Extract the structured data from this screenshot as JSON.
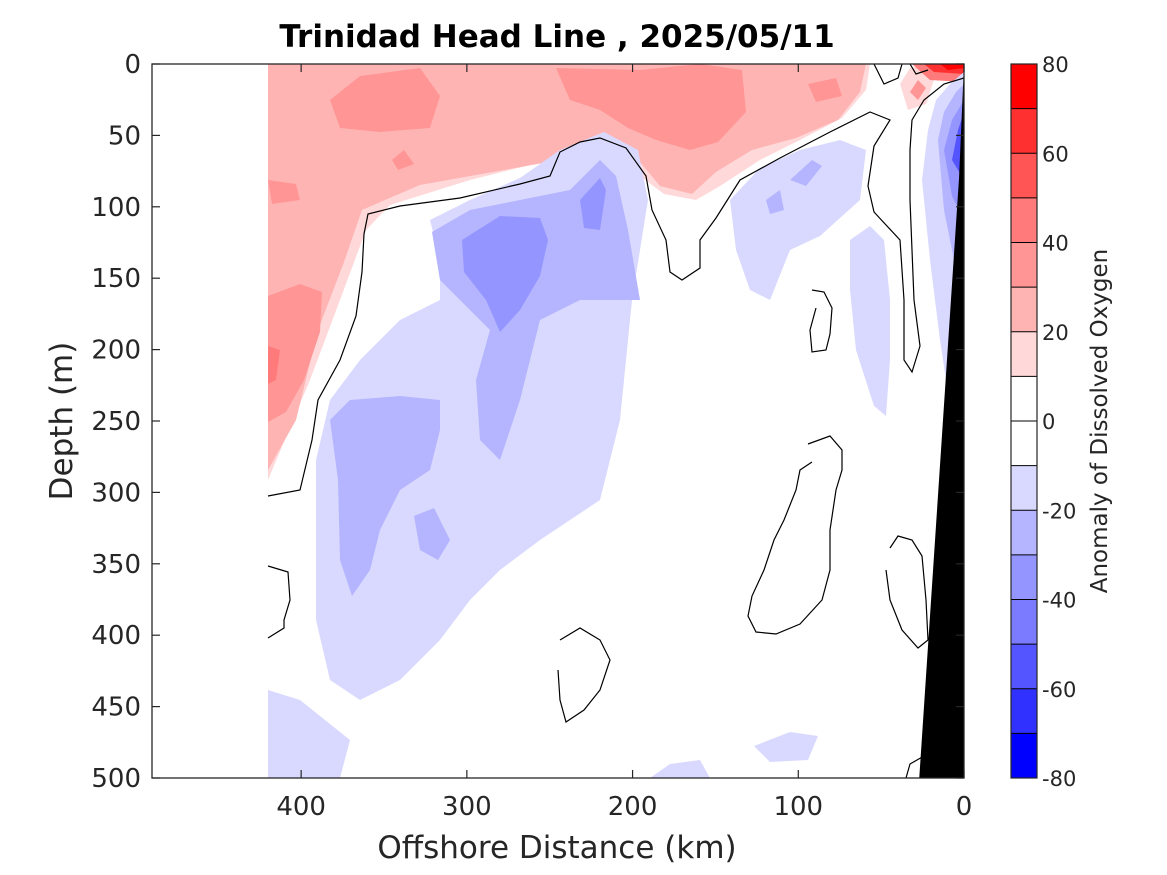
{
  "chart_data": {
    "type": "heatmap",
    "subtype": "filled-contour section",
    "title": "Trinidad Head Line , 2025/05/11",
    "xlabel": "Offshore Distance (km)",
    "ylabel": "Depth (m)",
    "xlim": [
      490,
      0
    ],
    "x_reversed": true,
    "ylim": [
      500,
      0
    ],
    "y_reversed": true,
    "xticks": [
      400,
      300,
      200,
      100,
      0
    ],
    "yticks": [
      0,
      50,
      100,
      150,
      200,
      250,
      300,
      350,
      400,
      450,
      500
    ],
    "grid": false,
    "colorbar": {
      "label": "Anomaly of Dissolved Oxygen",
      "range": [
        -80,
        80
      ],
      "level_step": 10,
      "ticks": [
        80,
        60,
        40,
        20,
        0,
        -20,
        -40,
        -60,
        -80
      ],
      "colors": {
        "pos_70_80": "#ff0000",
        "pos_60_70": "#ff3030",
        "pos_50_60": "#ff5555",
        "pos_40_50": "#ff7b7b",
        "pos_30_40": "#ff9595",
        "pos_20_30": "#ffb4b4",
        "pos_10_20": "#ffd9d9",
        "zero_band": "#ffffff",
        "neg_10_20": "#d9d9ff",
        "neg_20_30": "#b4b4ff",
        "neg_30_40": "#9595ff",
        "neg_40_50": "#7b7bff",
        "neg_50_60": "#5555ff",
        "neg_60_70": "#3030ff",
        "neg_70_80": "#0000ff"
      }
    },
    "data_extent_km": [
      420,
      0
    ],
    "bathymetry_mask": {
      "color": "#000000",
      "polygon_km_m": [
        [
          0,
          0
        ],
        [
          0,
          500
        ],
        [
          27,
          500
        ],
        [
          3,
          80
        ]
      ]
    },
    "features": [
      {
        "name": "nearshore-upper-positive-anomaly",
        "sign": "positive",
        "level": "20 to 40",
        "x_range_km": [
          420,
          80
        ],
        "depth_range_m": [
          0,
          110
        ]
      },
      {
        "name": "surface-peak-near-coast",
        "sign": "positive",
        "level": "up to 80",
        "x_range_km": [
          30,
          0
        ],
        "depth_range_m": [
          0,
          10
        ]
      },
      {
        "name": "offshore-deep-positive-lobe",
        "sign": "positive",
        "level": "20 to 40",
        "x_range_km": [
          420,
          370
        ],
        "depth_range_m": [
          130,
          300
        ]
      },
      {
        "name": "subsurface-negative-core",
        "sign": "negative",
        "level": "-20 to -40",
        "x_range_km": [
          320,
          230
        ],
        "depth_range_m": [
          60,
          260
        ]
      },
      {
        "name": "deep-offshore-negative-region",
        "sign": "negative",
        "level": "-10 to -30",
        "x_range_km": [
          400,
          200
        ],
        "depth_range_m": [
          230,
          440
        ]
      },
      {
        "name": "shelf-slope-negative-anomaly",
        "sign": "negative",
        "level": "-10 to -60",
        "x_range_km": [
          20,
          0
        ],
        "depth_range_m": [
          10,
          250
        ]
      }
    ]
  }
}
